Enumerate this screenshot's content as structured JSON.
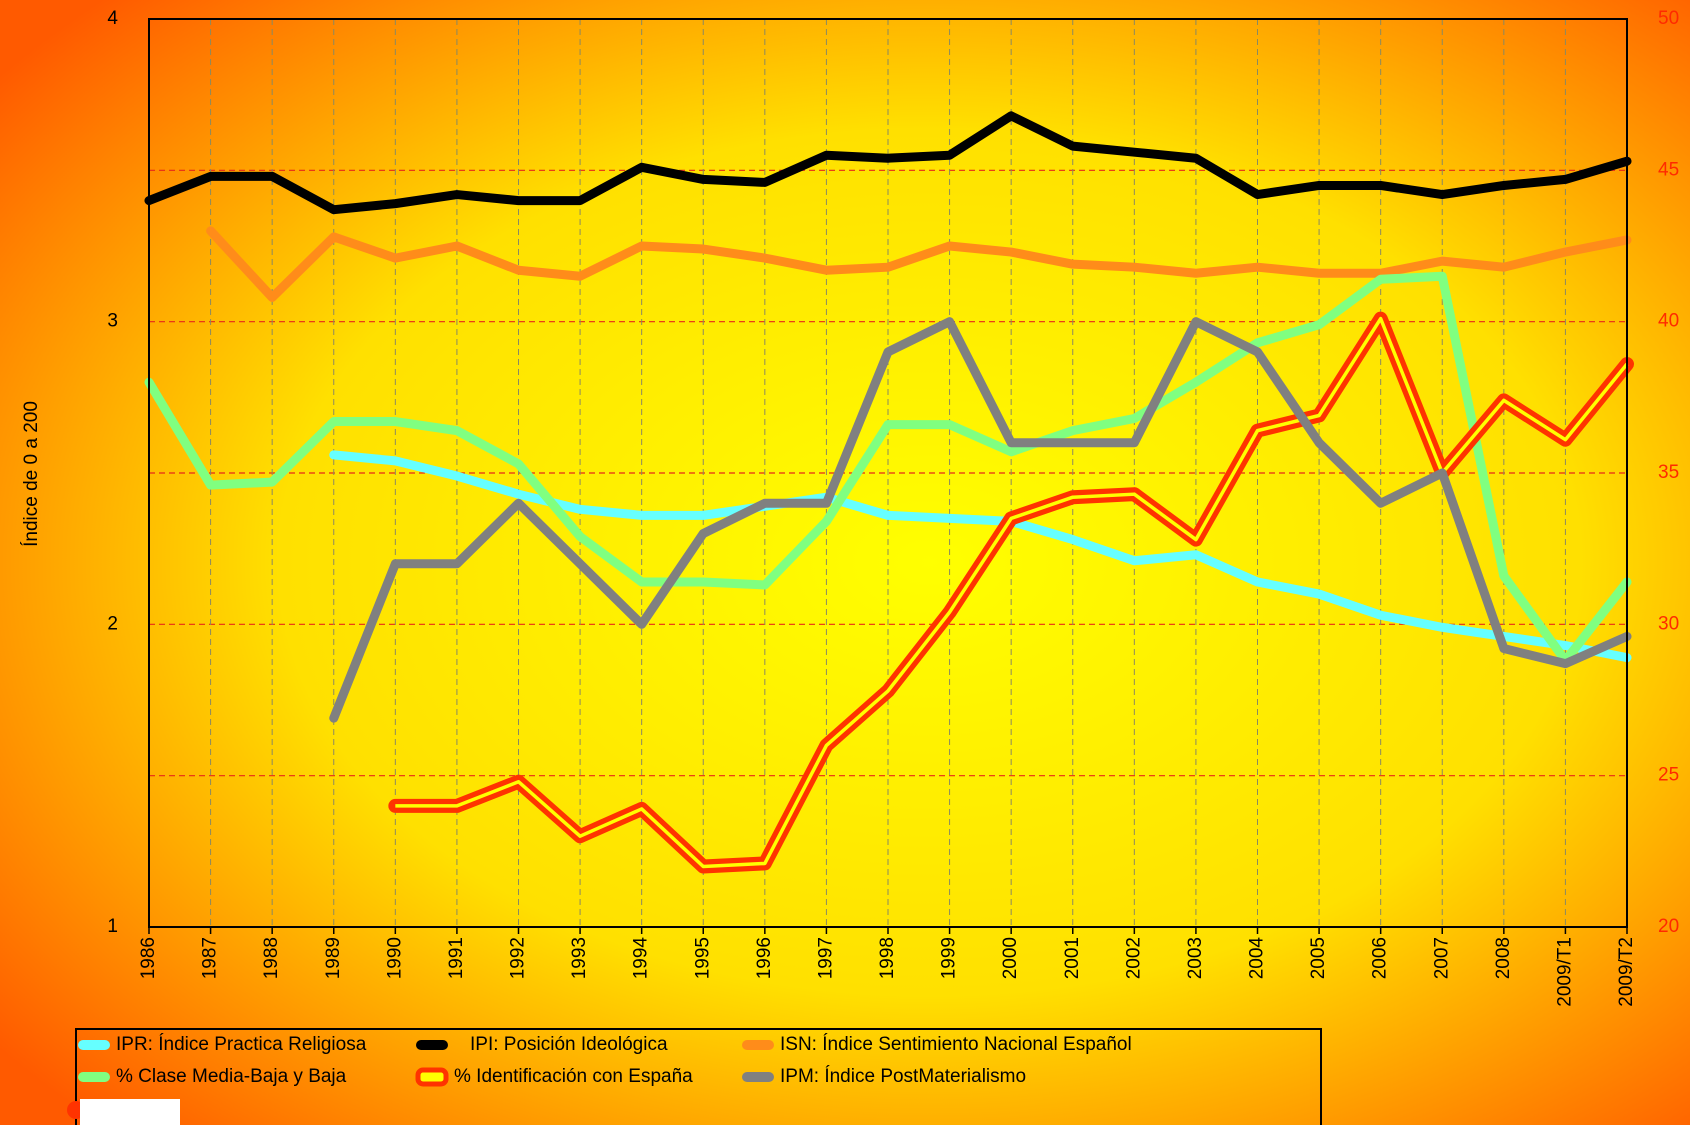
{
  "chart_data": {
    "type": "line",
    "ylabel": "Índice de 0 a 200",
    "categories": [
      "1986",
      "1987",
      "1988",
      "1989",
      "1990",
      "1991",
      "1992",
      "1993",
      "1994",
      "1995",
      "1996",
      "1997",
      "1998",
      "1999",
      "2000",
      "2001",
      "2002",
      "2003",
      "2004",
      "2005",
      "2006",
      "2007",
      "2008",
      "2009/T1",
      "2009/T2"
    ],
    "ylim": [
      1,
      4
    ],
    "yticks": [
      1,
      2,
      3,
      4
    ],
    "y2lim": [
      20,
      50
    ],
    "y2ticks": [
      20,
      25,
      30,
      35,
      40,
      45,
      50
    ],
    "grid": true,
    "series": [
      {
        "name": "IPR: Índice Practica Religiosa",
        "color": "#66ffff",
        "axis": "y",
        "values": [
          null,
          null,
          null,
          2.56,
          2.54,
          2.49,
          2.43,
          2.38,
          2.36,
          2.36,
          2.39,
          2.42,
          2.36,
          2.35,
          2.34,
          2.28,
          2.21,
          2.23,
          2.14,
          2.1,
          2.03,
          1.99,
          1.96,
          1.93,
          1.89
        ]
      },
      {
        "name": "IPI: Posición Ideológica",
        "color": "#000000",
        "axis": "y",
        "values": [
          3.4,
          3.48,
          3.48,
          3.37,
          3.39,
          3.42,
          3.4,
          3.4,
          3.51,
          3.47,
          3.46,
          3.55,
          3.54,
          3.55,
          3.68,
          3.58,
          3.56,
          3.54,
          3.42,
          3.45,
          3.45,
          3.42,
          3.45,
          3.47,
          3.53
        ]
      },
      {
        "name": "ISN: Índice Sentimiento Nacional Español",
        "color": "#ff8c1a",
        "axis": "y",
        "values": [
          null,
          3.3,
          3.08,
          3.28,
          3.21,
          3.25,
          3.17,
          3.15,
          3.25,
          3.24,
          3.21,
          3.17,
          3.18,
          3.25,
          3.23,
          3.19,
          3.18,
          3.16,
          3.18,
          3.16,
          3.16,
          3.2,
          3.18,
          3.23,
          3.27
        ]
      },
      {
        "name": "% Clase Media-Baja y Baja",
        "color": "#80ff80",
        "axis": "y2",
        "values": [
          38.0,
          34.6,
          34.7,
          36.7,
          36.7,
          36.4,
          35.3,
          32.9,
          31.4,
          31.4,
          31.3,
          33.4,
          36.6,
          36.6,
          35.7,
          36.4,
          36.8,
          38.0,
          39.3,
          39.9,
          41.4,
          41.5,
          31.6,
          28.8,
          31.4
        ]
      },
      {
        "name": "% Identificación con España",
        "color": "#ff3300",
        "inner_color": "#ffff00",
        "axis": "y2",
        "values": [
          null,
          null,
          null,
          null,
          24.0,
          24.0,
          24.8,
          23.0,
          23.9,
          22.0,
          22.1,
          26.0,
          27.8,
          30.4,
          33.5,
          34.2,
          34.3,
          32.8,
          36.4,
          36.9,
          40.1,
          35.0,
          37.4,
          36.1,
          38.6
        ]
      },
      {
        "name": "IPM: Índice PostMaterialismo",
        "color": "#808080",
        "axis": "y",
        "values": [
          null,
          null,
          null,
          1.69,
          2.2,
          2.2,
          2.4,
          2.2,
          2.0,
          2.3,
          2.4,
          2.4,
          2.9,
          3.0,
          2.6,
          2.6,
          2.6,
          3.0,
          2.9,
          2.6,
          2.4,
          2.5,
          1.92,
          1.87,
          1.96
        ]
      }
    ]
  }
}
